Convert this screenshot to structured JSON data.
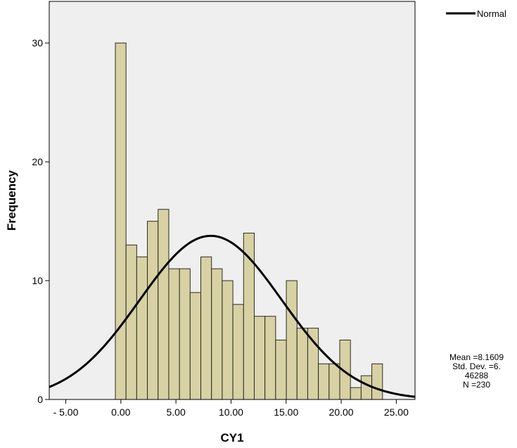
{
  "colors": {
    "plot_background": "#efefef",
    "bar_fill": "#d8d1a4",
    "bar_stroke": "#2b2b20",
    "curve": "#000000"
  },
  "chart_data": {
    "type": "bar",
    "subtype": "histogram",
    "xlabel": "CY1",
    "ylabel": "Frequency",
    "xlim": [
      -6.5,
      26.7
    ],
    "ylim": [
      0,
      33.5
    ],
    "x_ticks": [
      -5,
      0,
      5,
      10,
      15,
      20,
      25
    ],
    "x_tick_labels": [
      "- 5.00",
      "0.00",
      "5.00",
      "10.00",
      "15.00",
      "20.00",
      "25.00"
    ],
    "y_ticks": [
      0,
      10,
      20,
      30
    ],
    "y_tick_labels": [
      "0",
      "10",
      "20",
      "30"
    ],
    "bin_width": 0.97,
    "bin_start": -0.5,
    "values": [
      30,
      13,
      12,
      15,
      16,
      11,
      11,
      9,
      12,
      11,
      10,
      8,
      14,
      7,
      7,
      5,
      10,
      6,
      6,
      3,
      3,
      5,
      1,
      2,
      3
    ],
    "legend": {
      "position": "top-right",
      "entries": [
        {
          "label": "Normal",
          "style": "line"
        }
      ]
    },
    "normal_curve": {
      "mean": 8.1609,
      "std_dev": 6.46288,
      "n": 230
    },
    "grid": false
  },
  "stats": {
    "mean_line": "Mean =8.1609",
    "std_line_1": "Std. Dev. =6.",
    "std_line_2": "46288",
    "n_line": "N =230"
  }
}
